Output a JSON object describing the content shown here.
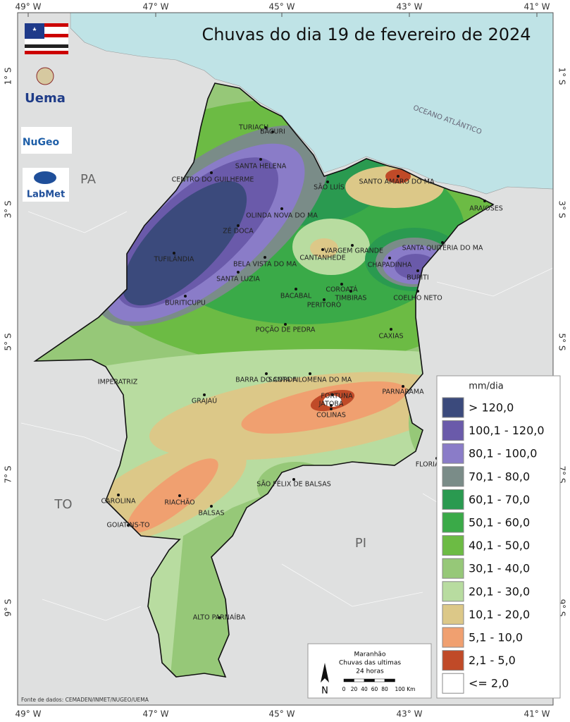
{
  "header": {
    "title": "Chuvas do dia 19 de fevereiro de 2024"
  },
  "graticule": {
    "longitudes": [
      "49° W",
      "47° W",
      "45° W",
      "43° W",
      "41° W"
    ],
    "latitudes": [
      "1° S",
      "3° S",
      "5° S",
      "7° S",
      "9° S"
    ]
  },
  "regions": [
    "PA",
    "TO",
    "PI"
  ],
  "ocean": "OCEANO ATLÂNTICO",
  "logos": {
    "uema": "Uema",
    "nugeo": "NuGeo",
    "labmet": "LabMet"
  },
  "cities": [
    "TURIAÇU",
    "BACURI",
    "SANTA HELENA",
    "CENTRO DO GUILHERME",
    "SÃO LUÍS",
    "SANTO AMARO DO MA",
    "ARAIOSES",
    "OLINDA NOVA DO MA",
    "ZÉ DOCA",
    "SANTA QUITÉRIA DO MA",
    "CANTANHEDE",
    "VARGEM GRANDE",
    "CHAPADINHA",
    "BURITI",
    "TUFILÂNDIA",
    "BELA VISTA DO MA",
    "SANTA LUZIA",
    "BACABAL",
    "COROATÁ",
    "TIMBIRAS",
    "PERITORÓ",
    "COELHO NETO",
    "BURITICUPU",
    "POÇÃO DE PEDRA",
    "CAXIAS",
    "BARRA DO CORDA",
    "SANTA FILOMENA DO MA",
    "IMPERATRIZ",
    "GRAJAÚ",
    "PARNARAMA",
    "FORTUNA",
    "JATOBÁ",
    "COLINAS",
    "FLORIANO-PI",
    "SÃO FÉLIX DE BALSAS",
    "CAROLINA",
    "RIACHÃO",
    "BALSAS",
    "GOIATINS-TO",
    "ALTO PARNAÍBA"
  ],
  "legend": {
    "title": "mm/dia",
    "items": [
      {
        "label": "> 120,0",
        "color": "#3b4a7c"
      },
      {
        "label": "100,1 - 120,0",
        "color": "#6a5aaa"
      },
      {
        "label": "80,1 - 100,0",
        "color": "#8a7cc8"
      },
      {
        "label": "70,1 - 80,0",
        "color": "#7a8c88"
      },
      {
        "label": "60,1 - 70,0",
        "color": "#2a9a50"
      },
      {
        "label": "50,1 - 60,0",
        "color": "#3aaa48"
      },
      {
        "label": "40,1 - 50,0",
        "color": "#6cbb44"
      },
      {
        "label": "30,1 - 40,0",
        "color": "#96c878"
      },
      {
        "label": "20,1 - 30,0",
        "color": "#b8dca0"
      },
      {
        "label": "10,1 - 20,0",
        "color": "#dcc888"
      },
      {
        "label": "5,1 - 10,0",
        "color": "#f0a070"
      },
      {
        "label": "2,1 - 5,0",
        "color": "#c04a28"
      },
      {
        "label": "<= 2,0",
        "color": "#ffffff"
      }
    ]
  },
  "scale": {
    "title": [
      "Maranhão",
      "Chuvas das ultimas",
      "24 horas"
    ],
    "north": "N",
    "labels": [
      "0",
      "20",
      "40",
      "60",
      "80",
      "100 Km"
    ]
  },
  "source": "Fonte de dados: CEMADEN/INMET/NUGEO/UEMA"
}
